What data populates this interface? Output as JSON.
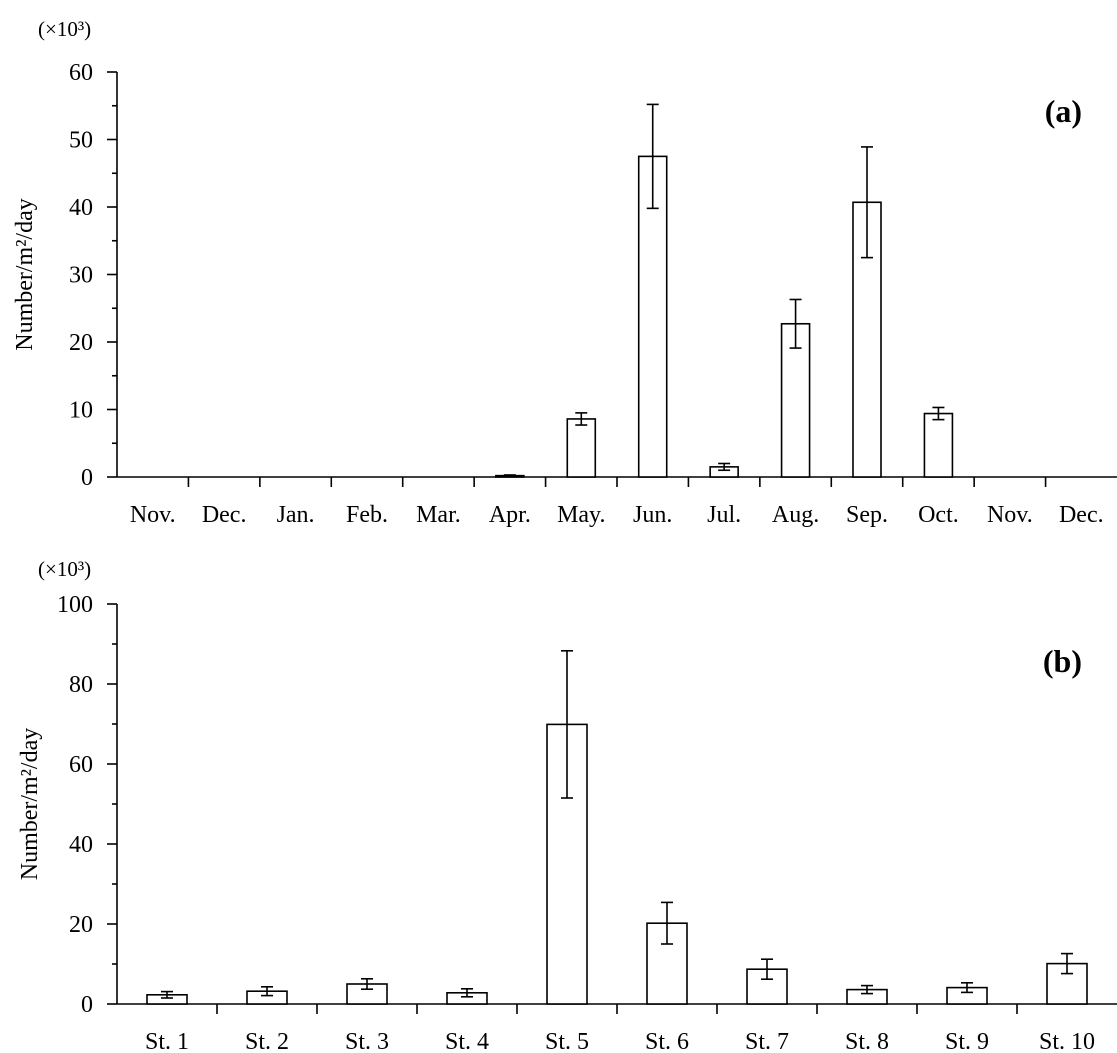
{
  "chart_data": [
    {
      "type": "bar",
      "panel_label": "(a)",
      "unit_multiplier": "(×10³)",
      "ylabel": "Number/m²/day",
      "xlabel": "",
      "ylim": [
        0,
        60
      ],
      "y_major_ticks": [
        0,
        10,
        20,
        30,
        40,
        50,
        60
      ],
      "y_minor_step": 5,
      "grid": false,
      "categories": [
        "Nov.",
        "Dec.",
        "Jan.",
        "Feb.",
        "Mar.",
        "Apr.",
        "May.",
        "Jun.",
        "Jul.",
        "Aug.",
        "Sep.",
        "Oct.",
        "Nov.",
        "Dec."
      ],
      "values": [
        0,
        0,
        0,
        0,
        0,
        0.2,
        8.6,
        47.5,
        1.5,
        22.7,
        40.7,
        9.4,
        0,
        0
      ],
      "errors": [
        0,
        0,
        0,
        0,
        0,
        0.1,
        0.9,
        7.7,
        0.5,
        3.6,
        8.2,
        0.9,
        0,
        0
      ]
    },
    {
      "type": "bar",
      "panel_label": "(b)",
      "unit_multiplier": "(×10³)",
      "ylabel": "Number/m²/day",
      "xlabel": "",
      "ylim": [
        0,
        100
      ],
      "y_major_ticks": [
        0,
        20,
        40,
        60,
        80,
        100
      ],
      "y_minor_step": 10,
      "grid": false,
      "categories": [
        "St. 1",
        "St. 2",
        "St. 3",
        "St. 4",
        "St. 5",
        "St. 6",
        "St. 7",
        "St. 8",
        "St. 9",
        "St. 10"
      ],
      "values": [
        2.3,
        3.2,
        5.0,
        2.8,
        69.9,
        20.2,
        8.7,
        3.6,
        4.1,
        10.1
      ],
      "errors": [
        0.8,
        1.1,
        1.3,
        1.0,
        18.4,
        5.2,
        2.5,
        1.0,
        1.2,
        2.5
      ]
    }
  ]
}
